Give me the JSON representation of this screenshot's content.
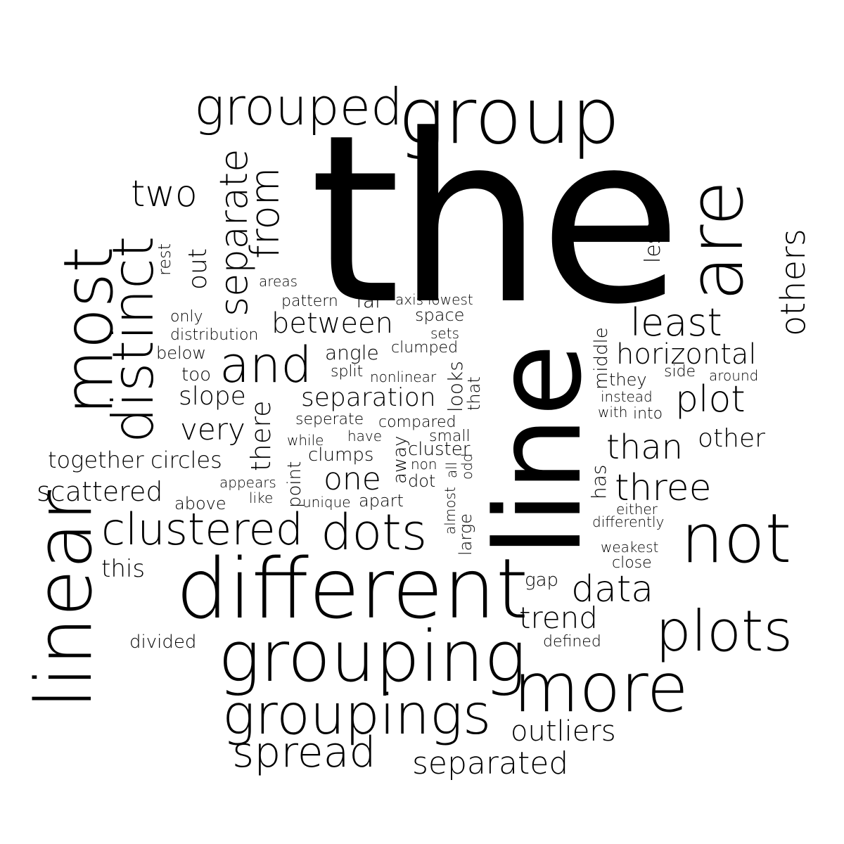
{
  "words": {
    "the": "the",
    "line": "line",
    "group": "group",
    "grouped": "grouped",
    "are": "are",
    "most": "most",
    "distinct": "distinct",
    "linear": "linear",
    "different": "different",
    "grouping": "grouping",
    "groupings": "groupings",
    "more": "more",
    "not": "not",
    "plots": "plots",
    "spread": "spread",
    "separated": "separated",
    "outliers": "outliers",
    "dots": "dots",
    "clustered": "clustered",
    "and": "and",
    "two": "two",
    "separate": "separate",
    "from": "from",
    "others": "others",
    "least": "least",
    "horizontal": "horizontal",
    "three": "three",
    "than": "than",
    "plot": "plot",
    "data": "data",
    "trend": "trend",
    "between": "between",
    "separation": "separation",
    "one": "one",
    "very": "very",
    "slope": "slope",
    "scattered": "scattered",
    "together": "together",
    "circles": "circles",
    "this": "this",
    "out": "out",
    "rest": "rest",
    "there": "there",
    "other": "other",
    "less": "less",
    "middle": "middle",
    "has": "has",
    "looks": "looks",
    "that": "that",
    "away": "away",
    "point": "point",
    "almost": "almost",
    "large": "large",
    "all": "all",
    "odd": "odd",
    "angle": "angle",
    "clumped": "clumped",
    "clumps": "clumps",
    "cluster": "cluster",
    "areas": "areas",
    "pattern": "pattern",
    "far": "far",
    "axis": "axis",
    "lowest": "lowest",
    "space": "space",
    "sets": "sets",
    "only": "only",
    "distribution": "distribution",
    "below": "below",
    "too": "too",
    "split": "split",
    "nonlinear": "nonlinear",
    "seperate": "seperate",
    "compared": "compared",
    "while": "while",
    "have": "have",
    "small": "small",
    "non": "non",
    "dot": "dot",
    "appears": "appears",
    "like": "like",
    "unique": "unique",
    "apart": "apart",
    "above": "above",
    "they": "they",
    "side": "side",
    "around": "around",
    "instead": "instead",
    "with": "with",
    "into": "into",
    "either": "either",
    "differently": "differently",
    "weakest": "weakest",
    "close": "close",
    "gap": "gap",
    "defined": "defined",
    "divided": "divided"
  }
}
